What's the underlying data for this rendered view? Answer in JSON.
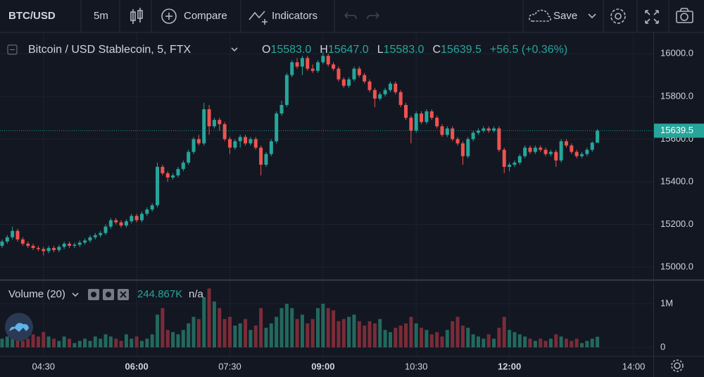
{
  "toolbar": {
    "symbol": "BTC/USD",
    "interval": "5m",
    "compare": "Compare",
    "indicators": "Indicators",
    "save": "Save"
  },
  "chart_data": {
    "type": "candlestick",
    "title": "Bitcoin / USD Stablecoin, 5, FTX",
    "legend": [
      {
        "key": "O",
        "value": "15583.0"
      },
      {
        "key": "H",
        "value": "15647.0"
      },
      {
        "key": "L",
        "value": "15583.0"
      },
      {
        "key": "C",
        "value": "15639.5"
      }
    ],
    "change": "+56.5 (+0.36%)",
    "up_color": "#26a69a",
    "down_color": "#ef5350",
    "x": [
      "03:50",
      "03:55",
      "04:00",
      "04:05",
      "04:10",
      "04:15",
      "04:20",
      "04:25",
      "04:30",
      "04:35",
      "04:40",
      "04:45",
      "04:50",
      "04:55",
      "05:00",
      "05:05",
      "05:10",
      "05:15",
      "05:20",
      "05:25",
      "05:30",
      "05:35",
      "05:40",
      "05:45",
      "05:50",
      "05:55",
      "06:00",
      "06:05",
      "06:10",
      "06:15",
      "06:20",
      "06:25",
      "06:30",
      "06:35",
      "06:40",
      "06:45",
      "06:50",
      "06:55",
      "07:00",
      "07:05",
      "07:10",
      "07:15",
      "07:20",
      "07:25",
      "07:30",
      "07:35",
      "07:40",
      "07:45",
      "07:50",
      "07:55",
      "08:00",
      "08:05",
      "08:10",
      "08:15",
      "08:20",
      "08:25",
      "08:30",
      "08:35",
      "08:40",
      "08:45",
      "08:50",
      "08:55",
      "09:00",
      "09:05",
      "09:10",
      "09:15",
      "09:20",
      "09:25",
      "09:30",
      "09:35",
      "09:40",
      "09:45",
      "09:50",
      "09:55",
      "10:00",
      "10:05",
      "10:10",
      "10:15",
      "10:20",
      "10:25",
      "10:30",
      "10:35",
      "10:40",
      "10:45",
      "10:50",
      "10:55",
      "11:00",
      "11:05",
      "11:10",
      "11:15",
      "11:20",
      "11:25",
      "11:30",
      "11:35",
      "11:40",
      "11:45",
      "11:50",
      "11:55",
      "12:00",
      "12:05",
      "12:10",
      "12:15",
      "12:20",
      "12:25",
      "12:30",
      "12:35",
      "12:40",
      "12:45",
      "12:50",
      "12:55",
      "13:00",
      "13:05",
      "13:10",
      "13:15",
      "13:20",
      "13:25"
    ],
    "open": [
      15100,
      15120,
      15140,
      15170,
      15130,
      15110,
      15100,
      15090,
      15085,
      15075,
      15090,
      15080,
      15095,
      15110,
      15100,
      15105,
      15115,
      15125,
      15140,
      15150,
      15160,
      15190,
      15220,
      15210,
      15195,
      15215,
      15240,
      15220,
      15250,
      15270,
      15290,
      15470,
      15440,
      15420,
      15430,
      15460,
      15490,
      15540,
      15600,
      15580,
      15740,
      15660,
      15690,
      15670,
      15600,
      15560,
      15590,
      15610,
      15580,
      15600,
      15560,
      15480,
      15530,
      15590,
      15720,
      15760,
      15900,
      15960,
      15940,
      15980,
      15930,
      15920,
      15960,
      15990,
      15950,
      15930,
      15880,
      15850,
      15880,
      15930,
      15900,
      15870,
      15830,
      15790,
      15810,
      15830,
      15860,
      15820,
      15760,
      15700,
      15640,
      15720,
      15680,
      15730,
      15700,
      15660,
      15620,
      15650,
      15600,
      15580,
      15520,
      15600,
      15630,
      15640,
      15650,
      15640,
      15650,
      15550,
      15470,
      15480,
      15490,
      15520,
      15560,
      15540,
      15560,
      15550,
      15530,
      15540,
      15500,
      15590,
      15570,
      15540,
      15520,
      15530,
      15550,
      15583
    ],
    "high": [
      15130,
      15150,
      15190,
      15180,
      15140,
      15120,
      15110,
      15100,
      15095,
      15100,
      15100,
      15105,
      15120,
      15120,
      15115,
      15125,
      15135,
      15150,
      15160,
      15170,
      15200,
      15230,
      15230,
      15220,
      15225,
      15250,
      15250,
      15260,
      15280,
      15300,
      15490,
      15480,
      15450,
      15440,
      15470,
      15500,
      15550,
      15610,
      15620,
      15770,
      15760,
      15700,
      15700,
      15680,
      15610,
      15600,
      15620,
      15620,
      15610,
      15610,
      15570,
      15540,
      15600,
      15730,
      15780,
      15910,
      15970,
      15980,
      15990,
      15990,
      15950,
      15970,
      16010,
      16000,
      15960,
      15940,
      15890,
      15890,
      15940,
      15940,
      15910,
      15880,
      15840,
      15820,
      15840,
      15870,
      15870,
      15830,
      15770,
      15710,
      15730,
      15730,
      15740,
      15740,
      15710,
      15670,
      15660,
      15660,
      15610,
      15590,
      15610,
      15640,
      15650,
      15660,
      15660,
      15660,
      15660,
      15560,
      15490,
      15500,
      15530,
      15570,
      15570,
      15570,
      15570,
      15560,
      15550,
      15550,
      15600,
      15600,
      15580,
      15550,
      15540,
      15560,
      15590,
      15647
    ],
    "low": [
      15090,
      15110,
      15130,
      15120,
      15100,
      15090,
      15080,
      15075,
      15055,
      15065,
      15070,
      15070,
      15085,
      15090,
      15090,
      15095,
      15105,
      15115,
      15130,
      15140,
      15150,
      15180,
      15200,
      15185,
      15185,
      15205,
      15210,
      15210,
      15240,
      15260,
      15280,
      15430,
      15400,
      15410,
      15420,
      15450,
      15480,
      15530,
      15570,
      15570,
      15620,
      15650,
      15640,
      15590,
      15530,
      15550,
      15560,
      15570,
      15570,
      15550,
      15430,
      15470,
      15520,
      15580,
      15710,
      15750,
      15890,
      15930,
      15900,
      15920,
      15910,
      15910,
      15950,
      15940,
      15920,
      15870,
      15840,
      15840,
      15870,
      15890,
      15860,
      15820,
      15750,
      15780,
      15800,
      15820,
      15810,
      15750,
      15690,
      15580,
      15630,
      15670,
      15670,
      15690,
      15650,
      15610,
      15610,
      15590,
      15570,
      15480,
      15510,
      15590,
      15620,
      15630,
      15630,
      15630,
      15540,
      15440,
      15450,
      15470,
      15480,
      15510,
      15530,
      15530,
      15540,
      15520,
      15520,
      15470,
      15490,
      15560,
      15530,
      15510,
      15510,
      15520,
      15540,
      15583
    ],
    "close": [
      15120,
      15140,
      15170,
      15130,
      15110,
      15100,
      15090,
      15085,
      15075,
      15090,
      15080,
      15095,
      15110,
      15100,
      15105,
      15115,
      15125,
      15140,
      15150,
      15160,
      15190,
      15220,
      15210,
      15195,
      15215,
      15240,
      15220,
      15250,
      15270,
      15290,
      15470,
      15440,
      15420,
      15430,
      15460,
      15490,
      15540,
      15600,
      15580,
      15740,
      15660,
      15690,
      15670,
      15600,
      15560,
      15590,
      15610,
      15580,
      15600,
      15560,
      15480,
      15530,
      15590,
      15720,
      15760,
      15900,
      15960,
      15940,
      15980,
      15930,
      15920,
      15960,
      15990,
      15950,
      15930,
      15880,
      15850,
      15880,
      15930,
      15900,
      15870,
      15830,
      15790,
      15810,
      15830,
      15860,
      15820,
      15760,
      15700,
      15640,
      15720,
      15680,
      15730,
      15700,
      15660,
      15620,
      15650,
      15600,
      15580,
      15520,
      15600,
      15630,
      15640,
      15650,
      15640,
      15650,
      15550,
      15470,
      15480,
      15490,
      15520,
      15560,
      15540,
      15560,
      15550,
      15530,
      15540,
      15500,
      15590,
      15570,
      15540,
      15520,
      15530,
      15550,
      15583,
      15639.5
    ],
    "last_price": 15639.5,
    "xlim": [
      "03:48",
      "14:19"
    ],
    "xticks": [
      "04:30",
      "06:00",
      "07:30",
      "09:00",
      "10:30",
      "12:00",
      "14:00"
    ],
    "ylim": [
      14941,
      16100
    ],
    "yticks": [
      {
        "value": 15000,
        "label": "15000.0"
      },
      {
        "value": 15200,
        "label": "15200.0"
      },
      {
        "value": 15400,
        "label": "15400.0"
      },
      {
        "value": 15600,
        "label": "15600.0"
      },
      {
        "value": 15800,
        "label": "15800.0"
      },
      {
        "value": 16000,
        "label": "16000.0"
      }
    ],
    "grid": true,
    "volume": {
      "name": "Volume (20)",
      "legend_value": "244.867K",
      "legend_extra": "n/a",
      "up_color": "#22695d",
      "down_color": "#7a2c38",
      "ylim": [
        0,
        1420000
      ],
      "yticks": [
        0,
        {
          "value": 1000000,
          "label": "1M"
        }
      ],
      "values": [
        200000,
        250000,
        450000,
        300000,
        150000,
        200000,
        300000,
        250000,
        350000,
        250000,
        200000,
        150000,
        250000,
        200000,
        100000,
        150000,
        200000,
        150000,
        250000,
        200000,
        300000,
        250000,
        200000,
        150000,
        300000,
        200000,
        250000,
        150000,
        200000,
        300000,
        750000,
        900000,
        400000,
        350000,
        300000,
        400000,
        550000,
        700000,
        650000,
        1150000,
        1350000,
        1050000,
        900000,
        650000,
        700000,
        500000,
        550000,
        650000,
        400000,
        500000,
        900000,
        450000,
        550000,
        700000,
        900000,
        1000000,
        900000,
        650000,
        750000,
        550000,
        650000,
        900000,
        1000000,
        900000,
        850000,
        600000,
        650000,
        700000,
        750000,
        600000,
        500000,
        600000,
        550000,
        650000,
        400000,
        350000,
        450000,
        500000,
        550000,
        700000,
        550000,
        450000,
        400000,
        300000,
        350000,
        250000,
        400000,
        600000,
        700000,
        500000,
        450000,
        300000,
        250000,
        200000,
        300000,
        200000,
        450000,
        700000,
        400000,
        350000,
        300000,
        250000,
        200000,
        150000,
        200000,
        150000,
        200000,
        300000,
        250000,
        200000,
        150000,
        200000,
        100000,
        150000,
        200000,
        244867
      ]
    }
  }
}
